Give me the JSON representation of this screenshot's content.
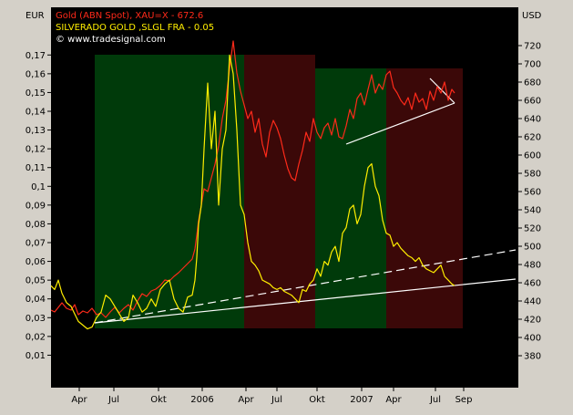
{
  "chart_data": {
    "type": "line",
    "units": {
      "left": "EUR",
      "right": "USD"
    },
    "legend": [
      {
        "text": "Gold (ABN Spot), XAU=X - 672.6",
        "color": "#ff2a1a"
      },
      {
        "text": "SILVERADO GOLD   ,SLGL FRA - 0.05",
        "color": "#ffee00"
      },
      {
        "text": "© www.tradesignal.com",
        "color": "#ffffff"
      }
    ],
    "x_ticks": [
      "Apr",
      "Jul",
      "Okt",
      "2006",
      "Apr",
      "Jul",
      "Okt",
      "2007",
      "Apr",
      "Jul",
      "Sep"
    ],
    "left_axis": {
      "ticks": [
        "0,17",
        "0,16",
        "0,15",
        "0,14",
        "0,13",
        "0,12",
        "0,11",
        "0,1",
        "0,09",
        "0,08",
        "0,07",
        "0,06",
        "0,05",
        "0,04",
        "0,03",
        "0,02",
        "0,01"
      ],
      "range": [
        0.0,
        0.175
      ]
    },
    "right_axis": {
      "ticks": [
        "720",
        "700",
        "680",
        "660",
        "640",
        "620",
        "600",
        "580",
        "560",
        "540",
        "520",
        "500",
        "480",
        "460",
        "440",
        "420",
        "400",
        "380"
      ],
      "range": [
        360,
        720
      ]
    },
    "series": [
      {
        "name": "Gold (ABN Spot), XAU=X - 672.6",
        "axis": "right",
        "color": "#ff2a1a",
        "t": [
          0,
          4,
          8,
          12,
          17,
          22,
          26,
          30,
          35,
          40,
          45,
          50,
          55,
          60,
          65,
          70,
          75,
          80,
          85,
          90,
          95,
          100,
          105,
          110,
          115,
          120,
          125,
          130,
          135,
          140,
          145,
          150,
          155,
          158,
          160,
          162,
          165,
          168,
          172,
          176,
          180,
          184,
          188,
          192,
          196,
          200,
          204,
          208,
          212,
          216,
          220,
          224,
          228,
          232,
          236,
          240,
          244,
          248,
          252,
          256,
          260,
          264,
          268,
          272,
          276,
          280,
          284,
          288,
          292,
          296,
          300,
          304,
          308,
          312,
          316,
          320,
          324,
          328,
          332,
          336,
          340,
          344,
          348,
          352,
          356,
          360,
          364,
          368,
          372,
          376,
          380,
          384,
          388,
          392,
          396,
          400,
          404,
          408,
          412,
          416,
          420,
          424,
          428,
          432,
          436,
          440,
          443
        ],
        "y": [
          430,
          428,
          433,
          438,
          432,
          430,
          436,
          425,
          429,
          427,
          432,
          425,
          427,
          422,
          428,
          433,
          427,
          432,
          436,
          430,
          440,
          448,
          445,
          451,
          453,
          457,
          463,
          462,
          467,
          471,
          476,
          481,
          486,
          497,
          512,
          528,
          545,
          563,
          560,
          575,
          590,
          610,
          640,
          660,
          695,
          725,
          690,
          670,
          655,
          640,
          648,
          625,
          640,
          612,
          598,
          625,
          638,
          630,
          618,
          600,
          585,
          575,
          572,
          590,
          605,
          625,
          615,
          640,
          625,
          618,
          630,
          635,
          622,
          640,
          620,
          618,
          632,
          650,
          640,
          662,
          668,
          655,
          672,
          688,
          668,
          678,
          672,
          688,
          692,
          674,
          668,
          660,
          655,
          663,
          650,
          668,
          658,
          662,
          650,
          670,
          660,
          675,
          668,
          680,
          660,
          672,
          668
        ]
      },
      {
        "name": "SILVERADO GOLD   ,SLGL FRA - 0.05",
        "axis": "left",
        "color": "#ffee00",
        "t": [
          0,
          4,
          8,
          12,
          17,
          22,
          26,
          30,
          35,
          40,
          45,
          50,
          55,
          60,
          65,
          70,
          75,
          80,
          85,
          90,
          95,
          100,
          105,
          110,
          115,
          120,
          125,
          130,
          135,
          140,
          145,
          150,
          155,
          158,
          160,
          162,
          165,
          168,
          172,
          176,
          180,
          184,
          188,
          192,
          196,
          200,
          204,
          208,
          212,
          216,
          220,
          224,
          228,
          232,
          236,
          240,
          244,
          248,
          252,
          256,
          260,
          264,
          268,
          272,
          276,
          280,
          284,
          288,
          292,
          296,
          300,
          304,
          308,
          312,
          316,
          320,
          324,
          328,
          332,
          336,
          340,
          344,
          348,
          352,
          356,
          360,
          364,
          368,
          372,
          376,
          380,
          384,
          388,
          392,
          396,
          400,
          404,
          408,
          412,
          416,
          420,
          424,
          428,
          432,
          436,
          440,
          443
        ],
        "y": [
          0.047,
          0.045,
          0.05,
          0.043,
          0.038,
          0.036,
          0.032,
          0.028,
          0.026,
          0.024,
          0.025,
          0.03,
          0.033,
          0.042,
          0.04,
          0.036,
          0.032,
          0.028,
          0.03,
          0.042,
          0.038,
          0.033,
          0.035,
          0.04,
          0.036,
          0.045,
          0.048,
          0.05,
          0.04,
          0.035,
          0.033,
          0.041,
          0.042,
          0.05,
          0.062,
          0.08,
          0.09,
          0.12,
          0.155,
          0.12,
          0.14,
          0.09,
          0.12,
          0.13,
          0.17,
          0.16,
          0.13,
          0.09,
          0.085,
          0.07,
          0.06,
          0.058,
          0.055,
          0.05,
          0.049,
          0.048,
          0.046,
          0.045,
          0.046,
          0.044,
          0.043,
          0.042,
          0.04,
          0.038,
          0.045,
          0.044,
          0.048,
          0.05,
          0.056,
          0.052,
          0.06,
          0.058,
          0.065,
          0.068,
          0.06,
          0.075,
          0.078,
          0.088,
          0.09,
          0.08,
          0.085,
          0.1,
          0.11,
          0.112,
          0.1,
          0.095,
          0.082,
          0.075,
          0.074,
          0.068,
          0.07,
          0.067,
          0.065,
          0.063,
          0.062,
          0.06,
          0.062,
          0.058,
          0.056,
          0.055,
          0.054,
          0.056,
          0.058,
          0.052,
          0.05,
          0.048,
          0.047
        ]
      }
    ],
    "regions": [
      {
        "kind": "up",
        "t": [
          48,
          212
        ],
        "value_range": [
          410,
          710
        ]
      },
      {
        "kind": "down",
        "t": [
          212,
          290
        ],
        "value_range": [
          410,
          710
        ]
      },
      {
        "kind": "up",
        "t": [
          290,
          368
        ],
        "value_range": [
          410,
          695
        ]
      },
      {
        "kind": "down",
        "t": [
          368,
          452
        ],
        "value_range": [
          410,
          695
        ]
      }
    ],
    "trendlines": [
      {
        "axis": "right",
        "style": "solid",
        "t": [
          48,
          510
        ],
        "y": [
          416,
          464
        ]
      },
      {
        "axis": "right",
        "style": "dashed",
        "t": [
          48,
          510
        ],
        "y": [
          416,
          496
        ]
      },
      {
        "axis": "right",
        "style": "solid",
        "t": [
          324,
          443
        ],
        "y": [
          612,
          657
        ]
      },
      {
        "axis": "right",
        "style": "solid",
        "t": [
          416,
          443
        ],
        "y": [
          684,
          657
        ]
      }
    ],
    "grid": false,
    "legend_position": "top-left"
  }
}
